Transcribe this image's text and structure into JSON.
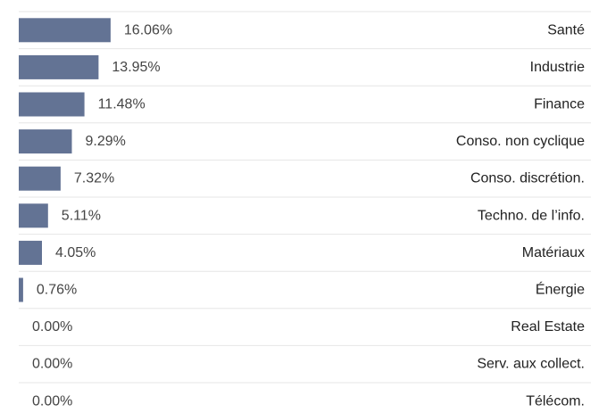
{
  "chart_data": {
    "type": "bar",
    "orientation": "horizontal",
    "categories": [
      "Santé",
      "Industrie",
      "Finance",
      "Conso. non cyclique",
      "Conso. discrétion.",
      "Techno. de l’info.",
      "Matériaux",
      "Énergie",
      "Real Estate",
      "Serv. aux collect.",
      "Télécom."
    ],
    "values": [
      16.06,
      13.95,
      11.48,
      9.29,
      7.32,
      5.11,
      4.05,
      0.76,
      0.0,
      0.0,
      0.0
    ],
    "value_labels": [
      "16.06%",
      "13.95%",
      "11.48%",
      "9.29%",
      "7.32%",
      "5.11%",
      "4.05%",
      "0.76%",
      "0.00%",
      "0.00%",
      "0.00%"
    ],
    "xlim": [
      0,
      100
    ],
    "grid": false,
    "legend": "none",
    "colors": {
      "bar": "#637394",
      "separator": "#e6e6e6"
    }
  }
}
